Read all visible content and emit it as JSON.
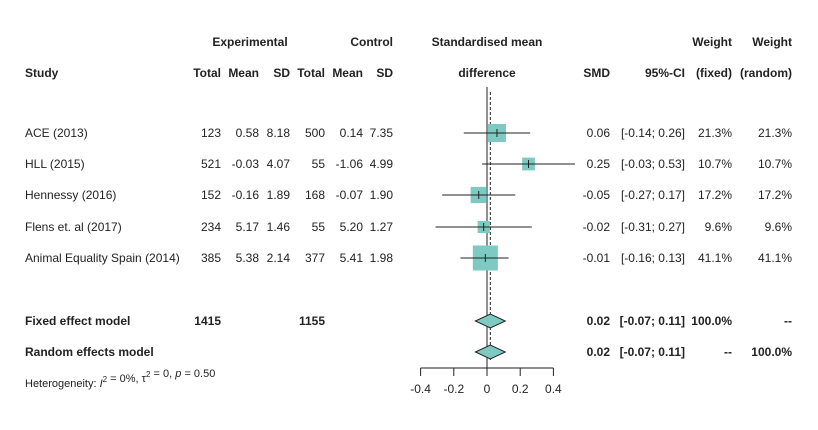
{
  "chart_data": {
    "type": "forest",
    "header": {
      "experimental": "Experimental",
      "control": "Control",
      "smd_title_1": "Standardised mean",
      "smd_title_2": "difference",
      "weight_1": "Weight",
      "weight_2": "Weight",
      "columns": {
        "study": "Study",
        "e_total": "Total",
        "e_mean": "Mean",
        "e_sd": "SD",
        "c_total": "Total",
        "c_mean": "Mean",
        "c_sd": "SD",
        "smd": "SMD",
        "ci": "95%-CI",
        "w_fixed": "(fixed)",
        "w_random": "(random)"
      }
    },
    "studies": [
      {
        "study": "ACE (2013)",
        "e_total": "123",
        "e_mean": "0.58",
        "e_sd": "8.18",
        "c_total": "500",
        "c_mean": "0.14",
        "c_sd": "7.35",
        "smd_text": "0.06",
        "ci_text": "[-0.14; 0.26]",
        "w_fixed": "21.3%",
        "w_random": "21.3%",
        "smd": 0.06,
        "lower": -0.14,
        "upper": 0.26,
        "weight": 21.3
      },
      {
        "study": "HLL (2015)",
        "e_total": "521",
        "e_mean": "-0.03",
        "e_sd": "4.07",
        "c_total": "55",
        "c_mean": "-1.06",
        "c_sd": "4.99",
        "smd_text": "0.25",
        "ci_text": "[-0.03; 0.53]",
        "w_fixed": "10.7%",
        "w_random": "10.7%",
        "smd": 0.25,
        "lower": -0.03,
        "upper": 0.53,
        "weight": 10.7
      },
      {
        "study": "Hennessy (2016)",
        "e_total": "152",
        "e_mean": "-0.16",
        "e_sd": "1.89",
        "c_total": "168",
        "c_mean": "-0.07",
        "c_sd": "1.90",
        "smd_text": "-0.05",
        "ci_text": "[-0.27; 0.17]",
        "w_fixed": "17.2%",
        "w_random": "17.2%",
        "smd": -0.05,
        "lower": -0.27,
        "upper": 0.17,
        "weight": 17.2
      },
      {
        "study": "Flens et. al (2017)",
        "e_total": "234",
        "e_mean": "5.17",
        "e_sd": "1.46",
        "c_total": "55",
        "c_mean": "5.20",
        "c_sd": "1.27",
        "smd_text": "-0.02",
        "ci_text": "[-0.31; 0.27]",
        "w_fixed": "9.6%",
        "w_random": "9.6%",
        "smd": -0.02,
        "lower": -0.31,
        "upper": 0.27,
        "weight": 9.6
      },
      {
        "study": "Animal Equality Spain (2014)",
        "e_total": "385",
        "e_mean": "5.38",
        "e_sd": "2.14",
        "c_total": "377",
        "c_mean": "5.41",
        "c_sd": "1.98",
        "smd_text": "-0.01",
        "ci_text": "[-0.16; 0.13]",
        "w_fixed": "41.1%",
        "w_random": "41.1%",
        "smd": -0.01,
        "lower": -0.16,
        "upper": 0.13,
        "weight": 41.1
      }
    ],
    "models": [
      {
        "study": "Fixed effect model",
        "e_total": "1415",
        "c_total": "1155",
        "smd_text": "0.02",
        "ci_text": "[-0.07; 0.11]",
        "w_fixed": "100.0%",
        "w_random": "--",
        "smd": 0.02,
        "lower": -0.07,
        "upper": 0.11
      },
      {
        "study": "Random effects model",
        "e_total": "",
        "c_total": "",
        "smd_text": "0.02",
        "ci_text": "[-0.07; 0.11]",
        "w_fixed": "--",
        "w_random": "100.0%",
        "smd": 0.02,
        "lower": -0.07,
        "upper": 0.11
      }
    ],
    "heterogeneity": {
      "prefix": "Heterogeneity: ",
      "i2_sym": "I",
      "i2_val": " = 0%, ",
      "tau_sym": "τ",
      "tau_val": " = 0, ",
      "p_sym": "p",
      "p_val": " = 0.50",
      "sup": "2"
    },
    "x_ticks": [
      -0.4,
      -0.2,
      0,
      0.2,
      0.4
    ],
    "x_tick_labels": [
      "-0.4",
      "-0.2",
      "0",
      "0.2",
      "0.4"
    ],
    "xlim": [
      -0.4,
      0.4
    ],
    "colors": {
      "box": "#7ecac3",
      "line": "#222222"
    }
  }
}
